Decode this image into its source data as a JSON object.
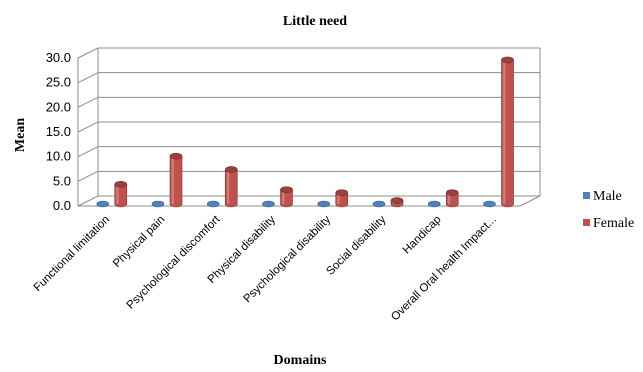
{
  "chart_data": {
    "type": "bar",
    "title": "Little need",
    "xlabel": "Domains",
    "ylabel": "Mean",
    "ylim": [
      0,
      30
    ],
    "yticks": [
      "0.0",
      "5.0",
      "10.0",
      "15.0",
      "20.0",
      "25.0",
      "30.0"
    ],
    "grid": true,
    "legend_position": "right",
    "categories": [
      "Functional limitation",
      "Physical pain",
      "Psychological discomfort",
      "Physical disability",
      "Psychological disability",
      "Social disability",
      "Handicap",
      "Overall Oral health Impact..."
    ],
    "series": [
      {
        "name": "Male",
        "color": "#4f81bd",
        "values": [
          0,
          0,
          0,
          0,
          0,
          0,
          0,
          0
        ]
      },
      {
        "name": "Female",
        "color": "#c0504d",
        "values": [
          4.0,
          9.7,
          7.0,
          2.9,
          2.3,
          0.7,
          2.3,
          29.2
        ]
      }
    ]
  }
}
